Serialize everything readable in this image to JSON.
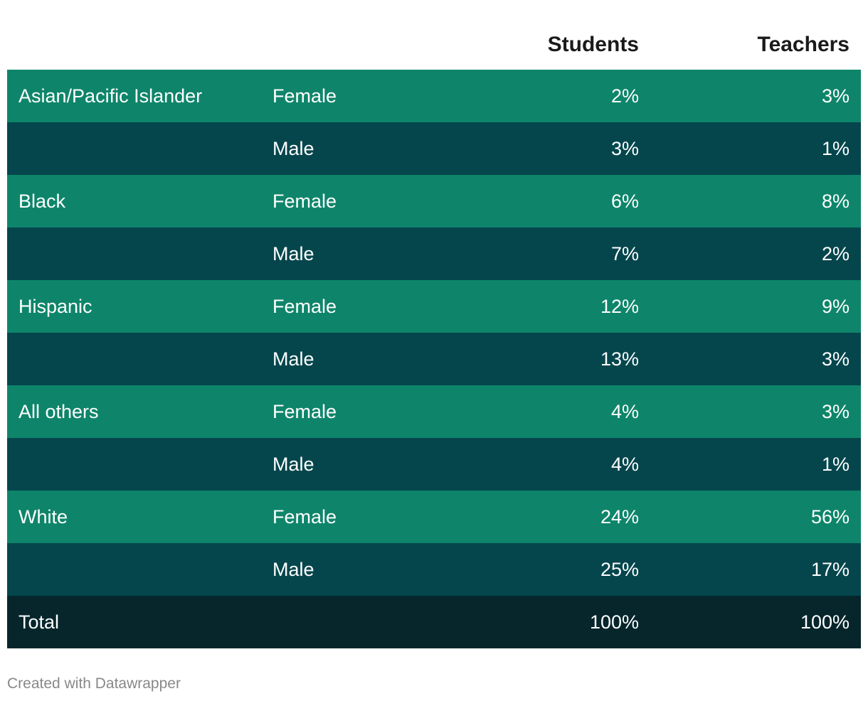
{
  "colors": {
    "female_row": "#0e856a",
    "male_row": "#05464d",
    "total_row": "#06262b",
    "header_text": "#1a1a1a",
    "footer_text": "#888888"
  },
  "chart_data": {
    "type": "table",
    "columns": [
      "",
      "",
      "Students",
      "Teachers"
    ],
    "rows": [
      {
        "group": "Asian/Pacific Islander",
        "gender": "Female",
        "students": "2%",
        "teachers": "3%"
      },
      {
        "group": "",
        "gender": "Male",
        "students": "3%",
        "teachers": "1%"
      },
      {
        "group": "Black",
        "gender": "Female",
        "students": "6%",
        "teachers": "8%"
      },
      {
        "group": "",
        "gender": "Male",
        "students": "7%",
        "teachers": "2%"
      },
      {
        "group": "Hispanic",
        "gender": "Female",
        "students": "12%",
        "teachers": "9%"
      },
      {
        "group": "",
        "gender": "Male",
        "students": "13%",
        "teachers": "3%"
      },
      {
        "group": "All others",
        "gender": "Female",
        "students": "4%",
        "teachers": "3%"
      },
      {
        "group": "",
        "gender": "Male",
        "students": "4%",
        "teachers": "1%"
      },
      {
        "group": "White",
        "gender": "Female",
        "students": "24%",
        "teachers": "56%"
      },
      {
        "group": "",
        "gender": "Male",
        "students": "25%",
        "teachers": "17%"
      }
    ],
    "total": {
      "label": "Total",
      "students": "100%",
      "teachers": "100%"
    }
  },
  "footer": "Created with Datawrapper"
}
